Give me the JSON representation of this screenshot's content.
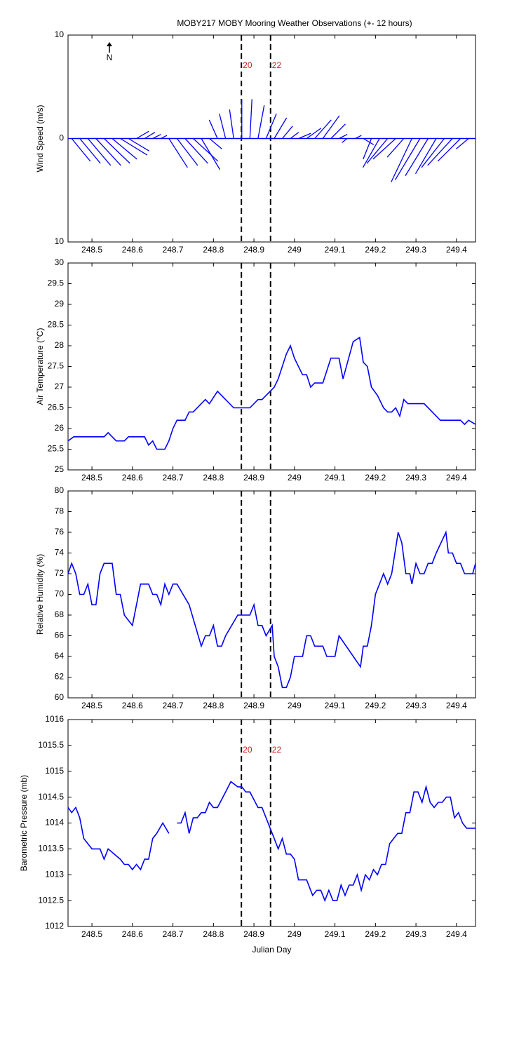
{
  "chart_data": [
    {
      "type": "stick",
      "title": "MOBY217 MOBY Mooring Weather Observations (+- 12 hours)",
      "ylabel": "Wind Speed (m/s)",
      "annotation": "N",
      "xlim": [
        248.441,
        249.447
      ],
      "xticks": [
        248.5,
        248.6,
        248.7,
        248.8,
        248.9,
        249,
        249.1,
        249.2,
        249.3,
        249.4
      ],
      "ylim": [
        -10,
        10
      ],
      "yticks": [
        {
          "value": -10,
          "label": "10"
        },
        0,
        {
          "value": 10,
          "label": "10"
        }
      ],
      "color": "#0000ff",
      "vlines": [
        248.869,
        248.941
      ],
      "vline_labels": [
        "20",
        "22"
      ],
      "x": [
        248.45,
        248.47,
        248.49,
        248.51,
        248.53,
        248.55,
        248.57,
        248.59,
        248.61,
        248.63,
        248.65,
        248.67,
        248.69,
        248.71,
        248.73,
        248.75,
        248.77,
        248.79,
        248.81,
        248.83,
        248.85,
        248.87,
        248.89,
        248.91,
        248.93,
        248.95,
        248.97,
        248.99,
        249.01,
        249.03,
        249.05,
        249.07,
        249.09,
        249.11,
        249.13,
        249.15,
        249.17,
        249.19,
        249.21,
        249.23,
        249.25,
        249.27,
        249.29,
        249.31,
        249.33,
        249.35,
        249.37,
        249.39,
        249.41,
        249.43
      ],
      "u": [
        1.8,
        2,
        2.2,
        2.4,
        2.5,
        2.4,
        2.6,
        2,
        1.2,
        1,
        0.8,
        0.6,
        1.8,
        2,
        2.2,
        2.4,
        1.8,
        1.2,
        -0.8,
        -0.6,
        -0.4,
        0,
        0.2,
        0.6,
        1,
        1.2,
        1,
        0.8,
        1.2,
        1.4,
        1.6,
        1.6,
        1.4,
        0.8,
        -0.5,
        0.6,
        1,
        -0.8,
        -1.6,
        -2,
        -2.2,
        -1.6,
        -2,
        -2.4,
        -2.2,
        -2,
        -2.2,
        -2.4,
        -2.2,
        -1.2
      ],
      "v": [
        -2.2,
        -2.4,
        -2.6,
        -2.6,
        -2.4,
        -2,
        -1.6,
        -1.2,
        0.7,
        0.6,
        0.4,
        0.3,
        -2.8,
        -2.6,
        -2.4,
        -2.2,
        -3,
        -1,
        1.8,
        2.4,
        2.8,
        3.8,
        3.8,
        3.2,
        2.4,
        2,
        1.2,
        0.6,
        0.5,
        1,
        1.8,
        2.2,
        1.4,
        0.4,
        -0.4,
        0.3,
        -0.6,
        -2,
        -2.8,
        -2.4,
        -2,
        -1.8,
        -4.2,
        -4,
        -3.6,
        -3.4,
        -2.8,
        -2.6,
        -2.2,
        -1
      ]
    },
    {
      "type": "line",
      "ylabel": "Air Temperature (°C)",
      "xlim": [
        248.441,
        249.447
      ],
      "xticks": [
        248.5,
        248.6,
        248.7,
        248.8,
        248.9,
        249,
        249.1,
        249.2,
        249.3,
        249.4
      ],
      "ylim": [
        25,
        30
      ],
      "yticks": [
        25,
        25.5,
        26,
        26.5,
        27,
        27.5,
        28,
        28.5,
        29,
        29.5,
        30
      ],
      "color": "#0000ff",
      "vlines": [
        248.869,
        248.941
      ],
      "x": [
        248.441,
        248.455,
        248.53,
        248.54,
        248.56,
        248.58,
        248.59,
        248.63,
        248.64,
        248.65,
        248.66,
        248.68,
        248.69,
        248.7,
        248.71,
        248.73,
        248.74,
        248.75,
        248.77,
        248.78,
        248.79,
        248.81,
        248.85,
        248.89,
        248.91,
        248.92,
        248.94,
        248.95,
        248.96,
        248.97,
        248.98,
        248.99,
        249,
        249.02,
        249.03,
        249.04,
        249.05,
        249.07,
        249.09,
        249.11,
        249.12,
        249.145,
        249.161,
        249.17,
        249.18,
        249.19,
        249.205,
        249.22,
        249.23,
        249.24,
        249.25,
        249.26,
        249.27,
        249.28,
        249.32,
        249.36,
        249.41,
        249.42,
        249.43,
        249.447
      ],
      "values": [
        25.7,
        25.8,
        25.8,
        25.9,
        25.7,
        25.7,
        25.8,
        25.8,
        25.6,
        25.7,
        25.5,
        25.5,
        25.7,
        26,
        26.2,
        26.2,
        26.4,
        26.4,
        26.6,
        26.7,
        26.6,
        26.9,
        26.5,
        26.5,
        26.7,
        26.7,
        26.9,
        27,
        27.2,
        27.5,
        27.8,
        28,
        27.7,
        27.3,
        27.3,
        27,
        27.1,
        27.1,
        27.7,
        27.7,
        27.2,
        28.1,
        28.2,
        27.6,
        27.5,
        27,
        26.8,
        26.5,
        26.4,
        26.4,
        26.5,
        26.3,
        26.7,
        26.6,
        26.6,
        26.2,
        26.2,
        26.1,
        26.2,
        26.1
      ]
    },
    {
      "type": "line",
      "ylabel": "Relative Humidity (%)",
      "xlim": [
        248.441,
        249.447
      ],
      "xticks": [
        248.5,
        248.6,
        248.7,
        248.8,
        248.9,
        249,
        249.1,
        249.2,
        249.3,
        249.4
      ],
      "ylim": [
        60,
        80
      ],
      "yticks": [
        60,
        62,
        64,
        66,
        68,
        70,
        72,
        74,
        76,
        78,
        80
      ],
      "color": "#0000ff",
      "vlines": [
        248.869,
        248.941
      ],
      "x": [
        248.441,
        248.45,
        248.46,
        248.47,
        248.48,
        248.49,
        248.5,
        248.51,
        248.52,
        248.53,
        248.55,
        248.56,
        248.57,
        248.58,
        248.6,
        248.62,
        248.64,
        248.65,
        248.66,
        248.67,
        248.68,
        248.69,
        248.7,
        248.71,
        248.74,
        248.77,
        248.78,
        248.79,
        248.8,
        248.81,
        248.82,
        248.83,
        248.86,
        248.88,
        248.89,
        248.9,
        248.91,
        248.92,
        248.93,
        248.945,
        248.95,
        248.96,
        248.97,
        248.98,
        248.99,
        249,
        249.02,
        249.03,
        249.04,
        249.05,
        249.07,
        249.08,
        249.1,
        249.11,
        249.163,
        249.17,
        249.18,
        249.19,
        249.2,
        249.22,
        249.23,
        249.24,
        249.256,
        249.265,
        249.275,
        249.285,
        249.29,
        249.3,
        249.31,
        249.32,
        249.33,
        249.34,
        249.35,
        249.374,
        249.38,
        249.39,
        249.4,
        249.41,
        249.42,
        249.44,
        249.447
      ],
      "values": [
        72,
        73,
        72,
        70,
        70,
        71,
        69,
        69,
        72,
        73,
        73,
        70,
        70,
        68,
        67,
        71,
        71,
        70,
        70,
        69,
        71,
        70,
        71,
        71,
        69,
        65,
        66,
        66,
        67,
        65,
        65,
        66,
        68,
        68,
        68,
        69,
        67,
        67,
        66,
        67,
        64,
        63,
        61,
        61,
        62,
        64,
        64,
        66,
        66,
        65,
        65,
        64,
        64,
        66,
        63,
        65,
        65,
        67,
        70,
        72,
        71,
        72,
        76,
        75,
        72,
        72,
        71,
        73,
        72,
        72,
        73,
        73,
        74,
        76,
        74,
        74,
        73,
        73,
        72,
        72,
        73
      ]
    },
    {
      "type": "line",
      "ylabel": "Barometric Pressure (mb)",
      "xlabel": "Julian Day",
      "xlim": [
        248.441,
        249.447
      ],
      "xticks": [
        248.5,
        248.6,
        248.7,
        248.8,
        248.9,
        249,
        249.1,
        249.2,
        249.3,
        249.4
      ],
      "ylim": [
        1012,
        1016
      ],
      "yticks": [
        1012,
        1012.5,
        1013,
        1013.5,
        1014,
        1014.5,
        1015,
        1015.5,
        1016
      ],
      "color": "#0000ff",
      "vlines": [
        248.869,
        248.941
      ],
      "vline_labels": [
        "20",
        "22"
      ],
      "x": [
        248.441,
        248.45,
        248.46,
        248.47,
        248.48,
        248.5,
        248.52,
        248.53,
        248.54,
        248.57,
        248.58,
        248.59,
        248.6,
        248.61,
        248.62,
        248.63,
        248.64,
        248.65,
        248.66,
        248.675,
        248.69,
        248.7,
        248.71,
        248.72,
        248.73,
        248.74,
        248.75,
        248.76,
        248.77,
        248.78,
        248.79,
        248.8,
        248.81,
        248.83,
        248.843,
        248.86,
        248.87,
        248.88,
        248.89,
        248.91,
        248.92,
        248.94,
        248.95,
        248.96,
        248.97,
        248.98,
        248.99,
        249,
        249.01,
        249.03,
        249.045,
        249.055,
        249.065,
        249.075,
        249.085,
        249.095,
        249.105,
        249.115,
        249.125,
        249.135,
        249.145,
        249.155,
        249.165,
        249.175,
        249.185,
        249.195,
        249.205,
        249.215,
        249.225,
        249.235,
        249.245,
        249.255,
        249.265,
        249.275,
        249.285,
        249.295,
        249.305,
        249.315,
        249.325,
        249.335,
        249.345,
        249.355,
        249.365,
        249.375,
        249.385,
        249.395,
        249.405,
        249.415,
        249.425,
        249.447
      ],
      "values": [
        1014.3,
        1014.2,
        1014.3,
        1014.1,
        1013.7,
        1013.5,
        1013.5,
        1013.3,
        1013.5,
        1013.3,
        1013.2,
        1013.2,
        1013.1,
        1013.2,
        1013.1,
        1013.3,
        1013.3,
        1013.7,
        1013.8,
        1014,
        1013.8,
        null,
        1014,
        1014,
        1014.2,
        1013.8,
        1014.1,
        1014.1,
        1014.2,
        1014.2,
        1014.4,
        1014.3,
        1014.3,
        1014.6,
        1014.8,
        1014.7,
        1014.7,
        1014.6,
        1014.6,
        1014.3,
        1014.3,
        1013.9,
        1013.7,
        1013.5,
        1013.7,
        1013.4,
        1013.4,
        1013.3,
        1012.9,
        1012.9,
        1012.6,
        1012.7,
        1012.7,
        1012.5,
        1012.7,
        1012.5,
        1012.5,
        1012.8,
        1012.6,
        1012.8,
        1012.8,
        1013,
        1012.7,
        1013,
        1012.9,
        1013.1,
        1013,
        1013.2,
        1013.2,
        1013.6,
        1013.7,
        1013.8,
        1013.8,
        1014.2,
        1014.2,
        1014.6,
        1014.6,
        1014.4,
        1014.7,
        1014.4,
        1014.3,
        1014.4,
        1014.4,
        1014.5,
        1014.5,
        1014.1,
        1014.2,
        1014,
        1013.9,
        1013.9
      ]
    }
  ]
}
